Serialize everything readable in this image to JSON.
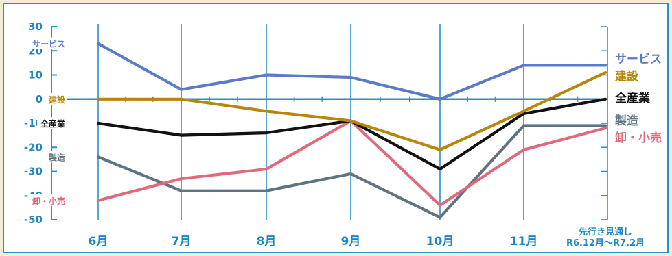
{
  "chart_data": {
    "type": "line",
    "categories": [
      "6月",
      "7月",
      "8月",
      "9月",
      "10月",
      "11月",
      "先行き見通し\nR6.12月～R7.2月"
    ],
    "yticks": [
      30,
      20,
      10,
      0,
      -10,
      -20,
      -30,
      -40,
      -50
    ],
    "ylim": [
      -50,
      30
    ],
    "grid": "vertical",
    "series": [
      {
        "name": "サービス",
        "color": "#5b7bc8",
        "values": [
          23,
          4,
          10,
          9,
          0,
          14,
          14
        ]
      },
      {
        "name": "建設",
        "color": "#b8860b",
        "values": [
          0,
          0,
          -5,
          -9,
          -21,
          -5,
          11
        ]
      },
      {
        "name": "全産業",
        "color": "#111111",
        "values": [
          -10,
          -15,
          -14,
          -9,
          -29,
          -6,
          0
        ]
      },
      {
        "name": "製造",
        "color": "#5f7480",
        "values": [
          -24,
          -38,
          -38,
          -31,
          -49,
          -11,
          -11
        ]
      },
      {
        "name": "卸・小売",
        "color": "#e06a7c",
        "values": [
          -42,
          -33,
          -29,
          -9,
          -44,
          -21,
          -12
        ]
      }
    ]
  }
}
